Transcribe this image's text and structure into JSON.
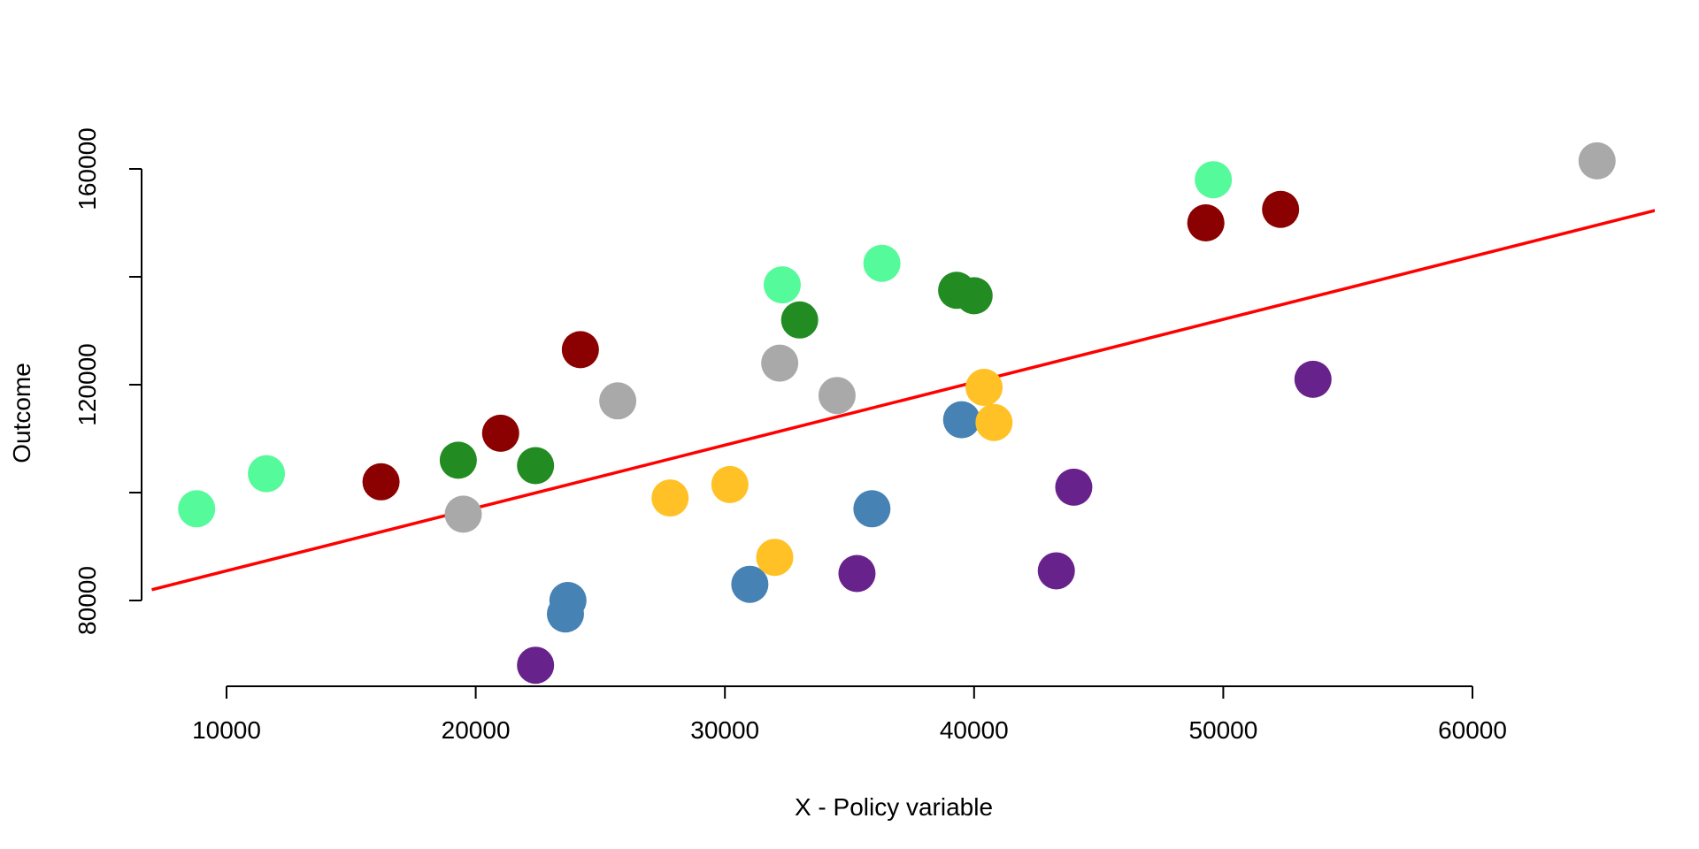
{
  "chart_data": {
    "type": "scatter",
    "title": "",
    "xlabel": "X - Policy variable",
    "ylabel": "Outcome",
    "xlim": [
      7000,
      68000
    ],
    "ylim": [
      60000,
      170000
    ],
    "x_ticks": [
      10000,
      20000,
      30000,
      40000,
      50000,
      60000
    ],
    "y_ticks": [
      80000,
      160000
    ],
    "y_tick_marks": [
      80000,
      100000,
      120000,
      140000,
      160000
    ],
    "y_tick_labels": [
      80000,
      120000,
      160000
    ],
    "grid": false,
    "trend_line": {
      "color": "#ff0000",
      "points": [
        [
          7000,
          82000
        ],
        [
          67500,
          152500
        ]
      ]
    },
    "series": [
      {
        "color": "#55fa9a",
        "points": [
          [
            8800,
            97000
          ],
          [
            11600,
            103500
          ],
          [
            32300,
            138500
          ],
          [
            36300,
            142500
          ],
          [
            49600,
            158000
          ]
        ]
      },
      {
        "color": "#8b0000",
        "points": [
          [
            16200,
            102000
          ],
          [
            21000,
            111000
          ],
          [
            24200,
            126500
          ],
          [
            49300,
            150000
          ],
          [
            52300,
            152500
          ]
        ]
      },
      {
        "color": "#228b22",
        "points": [
          [
            19300,
            106000
          ],
          [
            22400,
            105000
          ],
          [
            33000,
            132000
          ],
          [
            39300,
            137500
          ],
          [
            40000,
            136500
          ]
        ]
      },
      {
        "color": "#a9a9a9",
        "points": [
          [
            19500,
            96000
          ],
          [
            25700,
            117000
          ],
          [
            32200,
            124000
          ],
          [
            34500,
            118000
          ],
          [
            65000,
            161500
          ]
        ]
      },
      {
        "color": "#4682b4",
        "points": [
          [
            23700,
            80000
          ],
          [
            23600,
            77500
          ],
          [
            31000,
            83000
          ],
          [
            35900,
            97000
          ],
          [
            39500,
            113500
          ]
        ]
      },
      {
        "color": "#ffc125",
        "points": [
          [
            27800,
            99000
          ],
          [
            30200,
            101500
          ],
          [
            32000,
            88000
          ],
          [
            40400,
            119500
          ],
          [
            40800,
            113000
          ]
        ]
      },
      {
        "color": "#68228b",
        "points": [
          [
            22400,
            68000
          ],
          [
            35300,
            85000
          ],
          [
            43300,
            85500
          ],
          [
            44000,
            101000
          ],
          [
            53600,
            121000
          ]
        ]
      }
    ]
  }
}
